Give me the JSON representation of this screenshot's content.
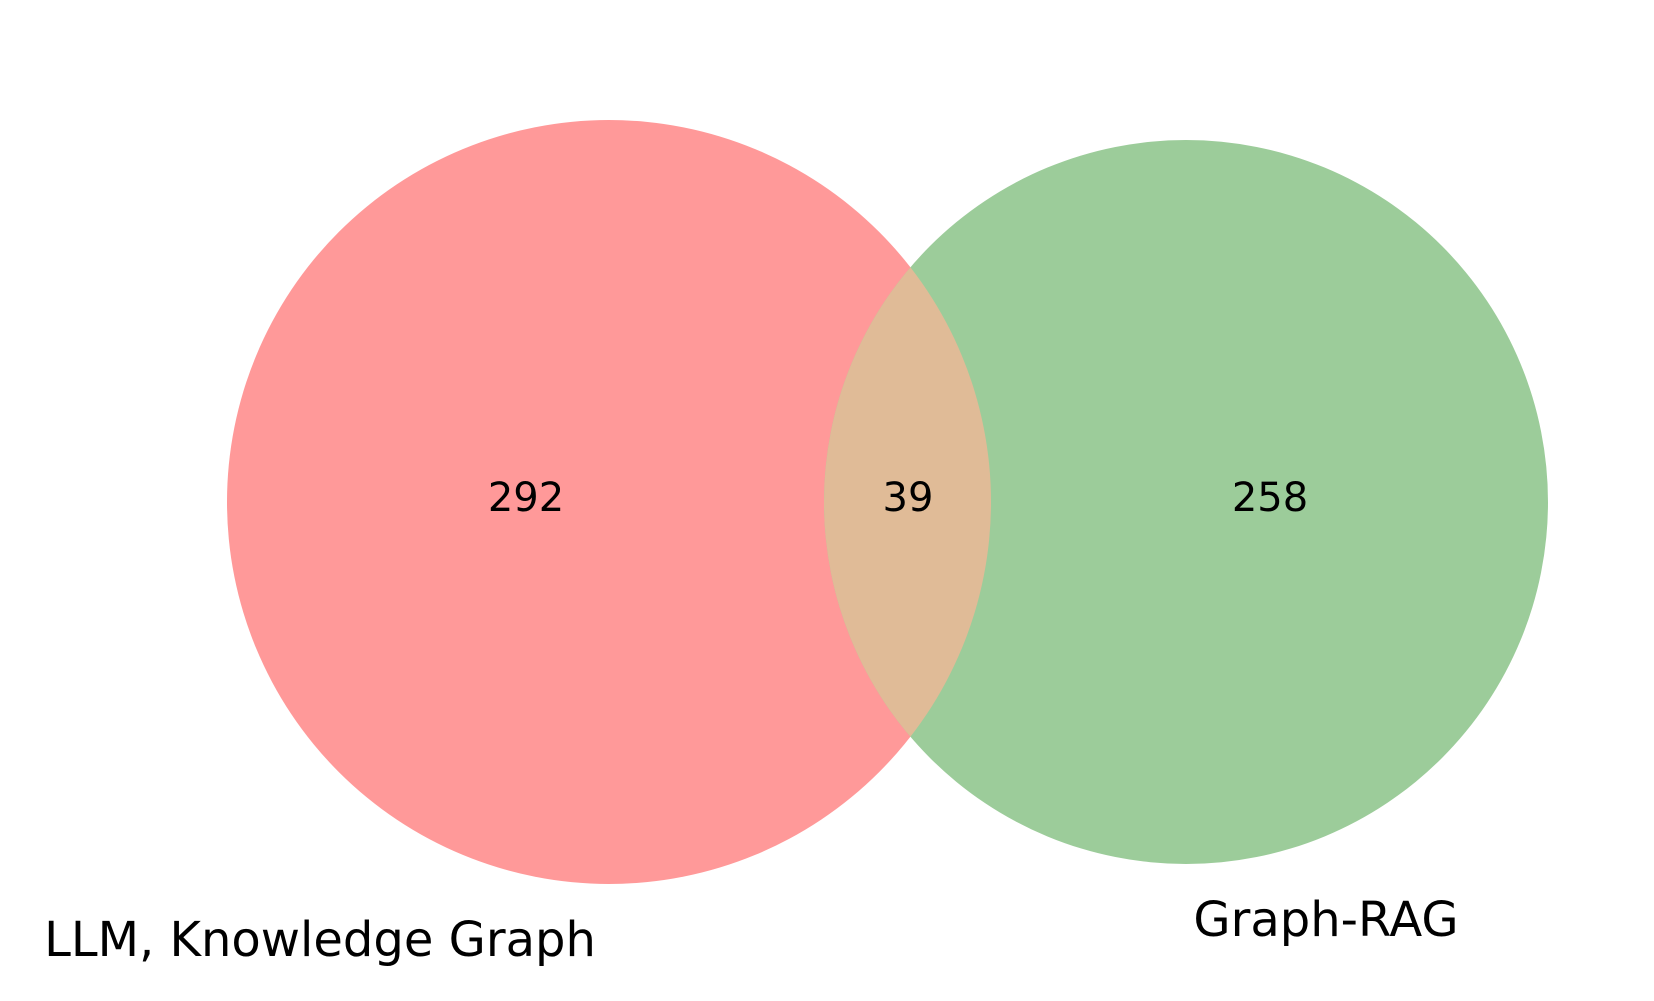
{
  "chart_data": {
    "type": "venn",
    "sets": [
      {
        "name": "LLM, Knowledge Graph",
        "only_count": 292,
        "color": "#ff9999"
      },
      {
        "name": "Graph-RAG",
        "only_count": 258,
        "color": "#9ccc9a"
      }
    ],
    "intersection": {
      "count": 39,
      "color": "#e0bb97"
    }
  }
}
